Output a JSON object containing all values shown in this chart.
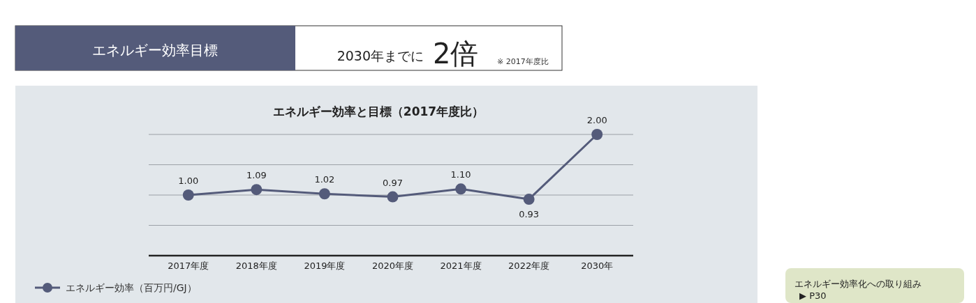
{
  "chart_data": {
    "type": "line",
    "title": "エネルギー効率と目標（2017年度比）",
    "categories": [
      "2017年度",
      "2018年度",
      "2019年度",
      "2020年度",
      "2021年度",
      "2022年度",
      "2030年"
    ],
    "series": [
      {
        "name": "エネルギー効率（百万円/GJ）",
        "color": "#545b7a",
        "values": [
          1.0,
          1.09,
          1.02,
          0.97,
          1.1,
          0.93,
          2.0
        ],
        "value_labels": [
          "1.00",
          "1.09",
          "1.02",
          "0.97",
          "1.10",
          "0.93",
          "2.00"
        ]
      }
    ],
    "ylim": [
      0,
      2.0
    ],
    "yticks": [
      {
        "value": 0.5,
        "label": null
      },
      {
        "value": 1.0,
        "label": null
      },
      {
        "value": 1.5,
        "label": null
      },
      {
        "value": 2.0,
        "label": null
      }
    ],
    "grid": "y",
    "marker": "circle",
    "line_style": "solid",
    "legend": "bottom left",
    "tick_labels": "x",
    "annotations": [
      "エネルギー効率目標",
      "2030年までに",
      "2倍",
      "※ 2017年度比",
      "エネルギー効率化への取り組み",
      "▶ P30"
    ]
  }
}
